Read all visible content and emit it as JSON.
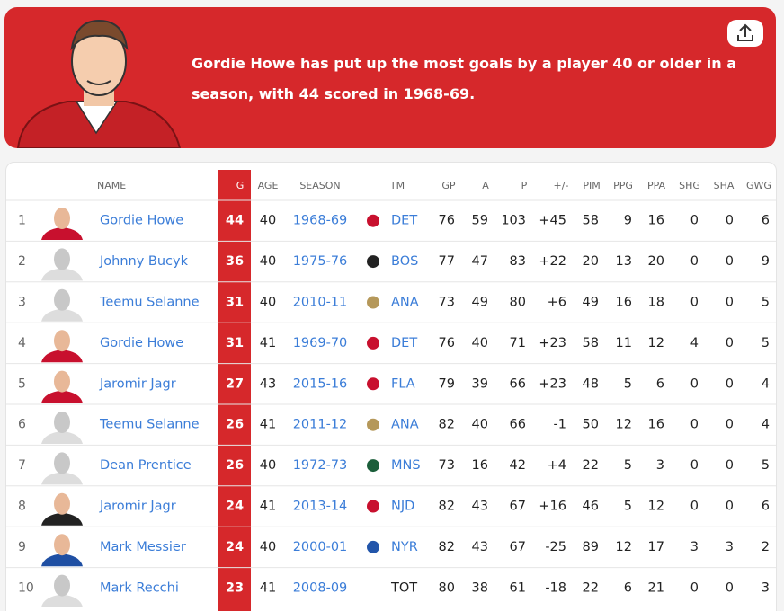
{
  "banner": {
    "headline_lines": [
      "Gordie Howe has put up the most goals by a player 40 or older in a",
      "season, with 44 scored in 1968-69."
    ]
  },
  "table": {
    "headers": [
      "NAME",
      "G",
      "AGE",
      "SEASON",
      "TM",
      "GP",
      "A",
      "P",
      "+/-",
      "PIM",
      "PPG",
      "PPA",
      "SHG",
      "SHA",
      "GWG"
    ],
    "rows": [
      [
        1,
        "Gordie Howe",
        44,
        40,
        "1968-69",
        "DET",
        76,
        59,
        103,
        "+45",
        58,
        9,
        16,
        0,
        0,
        6
      ],
      [
        2,
        "Johnny Bucyk",
        36,
        40,
        "1975-76",
        "BOS",
        77,
        47,
        83,
        "+22",
        20,
        13,
        20,
        0,
        0,
        9
      ],
      [
        3,
        "Teemu Selanne",
        31,
        40,
        "2010-11",
        "ANA",
        73,
        49,
        80,
        "+6",
        49,
        16,
        18,
        0,
        0,
        5
      ],
      [
        4,
        "Gordie Howe",
        31,
        41,
        "1969-70",
        "DET",
        76,
        40,
        71,
        "+23",
        58,
        11,
        12,
        4,
        0,
        5
      ],
      [
        5,
        "Jaromir Jagr",
        27,
        43,
        "2015-16",
        "FLA",
        79,
        39,
        66,
        "+23",
        48,
        5,
        6,
        0,
        0,
        4
      ],
      [
        6,
        "Teemu Selanne",
        26,
        41,
        "2011-12",
        "ANA",
        82,
        40,
        66,
        "-1",
        50,
        12,
        16,
        0,
        0,
        4
      ],
      [
        7,
        "Dean Prentice",
        26,
        40,
        "1972-73",
        "MNS",
        73,
        16,
        42,
        "+4",
        22,
        5,
        3,
        0,
        0,
        5
      ],
      [
        8,
        "Jaromir Jagr",
        24,
        41,
        "2013-14",
        "NJD",
        82,
        43,
        67,
        "+16",
        46,
        5,
        12,
        0,
        0,
        6
      ],
      [
        9,
        "Mark Messier",
        24,
        40,
        "2000-01",
        "NYR",
        82,
        43,
        67,
        "-25",
        89,
        12,
        17,
        3,
        3,
        2
      ],
      [
        10,
        "Mark Recchi",
        23,
        41,
        "2008-09",
        "TOT",
        80,
        38,
        61,
        "-18",
        22,
        6,
        21,
        0,
        0,
        3
      ]
    ]
  }
}
